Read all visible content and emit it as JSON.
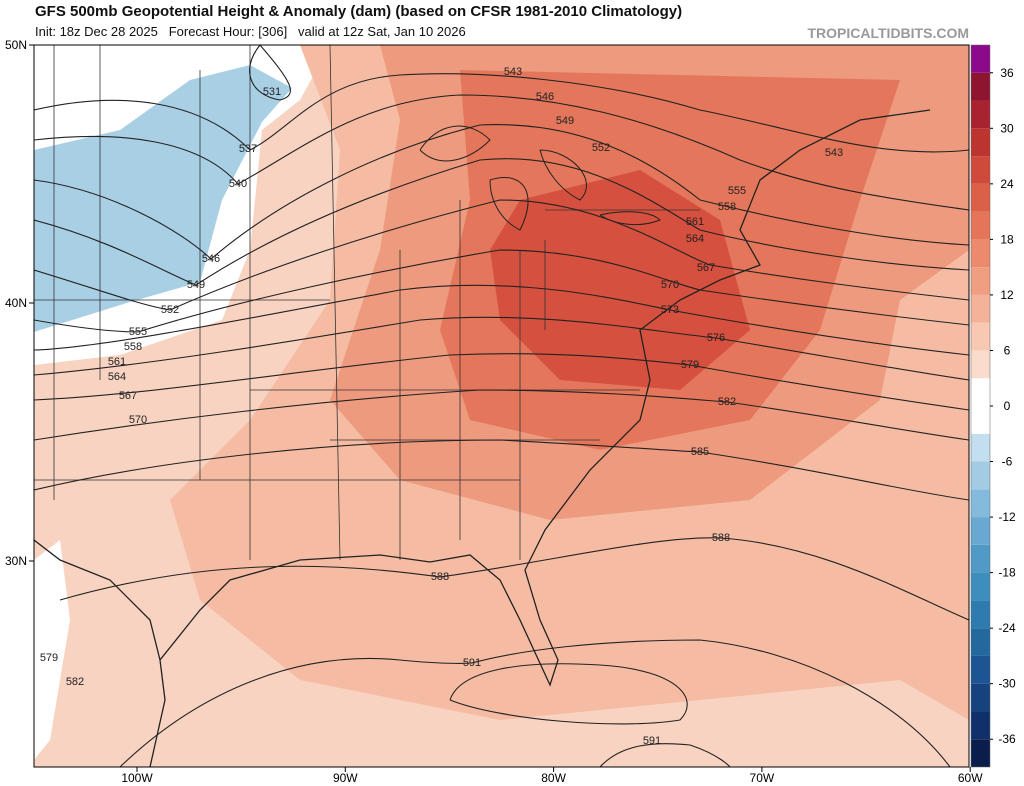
{
  "header": {
    "title": "GFS 500mb Geopotential Height & Anomaly (dam) (based on CFSR 1981-2010 Climatology)",
    "subtitle": "Init: 18z Dec 28 2025   Forecast Hour: [306]   valid at 12z Sat, Jan 10 2026",
    "brand": "TROPICALTIDBITS.COM"
  },
  "map": {
    "lon_labels": [
      "100W",
      "90W",
      "80W",
      "70W",
      "60W"
    ],
    "lat_labels": [
      "50N",
      "40N",
      "30N"
    ],
    "contour_labels": [
      531,
      537,
      540,
      546,
      549,
      552,
      555,
      558,
      561,
      564,
      567,
      570,
      543,
      546,
      549,
      552,
      543,
      555,
      558,
      561,
      564,
      567,
      570,
      573,
      576,
      579,
      582,
      585,
      588,
      588,
      591,
      591,
      579,
      582
    ]
  },
  "colorbar": {
    "clim": [
      -39,
      39
    ],
    "ticks": [
      36,
      30,
      24,
      18,
      12,
      6,
      0,
      -6,
      -12,
      -18,
      -24,
      -30,
      -36
    ],
    "colors": [
      "#0b1d4a",
      "#10306b",
      "#16427f",
      "#1c5591",
      "#2468a0",
      "#2e7baf",
      "#3d8dbd",
      "#5199c7",
      "#69a9d1",
      "#84badb",
      "#a3cce4",
      "#c3deee",
      "#ffffff",
      "#ffffff",
      "#fbdccc",
      "#f8c8b2",
      "#f4b398",
      "#f09e82",
      "#eb8a6c",
      "#e57558",
      "#dc6048",
      "#d04a3c",
      "#bd3330",
      "#a82230",
      "#8e1530",
      "#8b0a8b"
    ]
  }
}
